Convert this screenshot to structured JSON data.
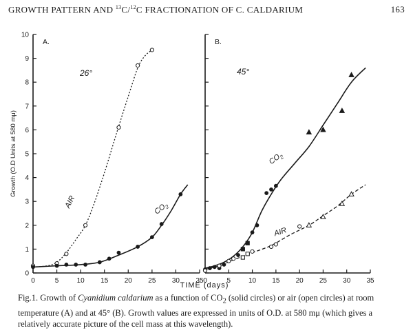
{
  "header": {
    "title_parts": [
      "GROWTH PATTERN AND ",
      "13",
      "C/",
      "12",
      "C FRACTIONATION OF C. CALDARIUM"
    ],
    "page_number": "163"
  },
  "caption": {
    "label": "Fig.1. Growth of ",
    "species": "Cyanidium caldarium",
    "part2": " as a function of CO",
    "sub2": "2",
    "part3": " (solid circles) or air (open circles) at room temperature (A) and at 45° (B). Growth values are expressed in units of O.D. at 580 mμ (which gives a relatively accurate picture of the cell mass at this wavelength)."
  },
  "chart_data": [
    {
      "type": "scatter",
      "panel": "A.",
      "temperature_label": "26°",
      "xlabel": "TIME (days)",
      "ylabel": "Growth (O.D Units at 580 mμ)",
      "xlim": [
        0,
        35
      ],
      "ylim": [
        0,
        10
      ],
      "x_ticks": [
        0,
        5,
        10,
        15,
        20,
        25,
        30,
        35
      ],
      "y_ticks": [
        0,
        1,
        2,
        3,
        4,
        5,
        6,
        7,
        8,
        9,
        10
      ],
      "series": [
        {
          "name": "AIR",
          "marker": "open-circle",
          "line": "dotted",
          "points": [
            [
              0,
              0.3
            ],
            [
              5,
              0.4
            ],
            [
              7,
              0.8
            ],
            [
              11,
              2.0
            ],
            [
              18,
              6.1
            ],
            [
              22,
              8.7
            ],
            [
              25,
              9.35
            ]
          ],
          "curve": [
            [
              0,
              0.25
            ],
            [
              3,
              0.3
            ],
            [
              5,
              0.45
            ],
            [
              7,
              0.85
            ],
            [
              9,
              1.4
            ],
            [
              11,
              2.0
            ],
            [
              13,
              3.0
            ],
            [
              15,
              4.2
            ],
            [
              17,
              5.5
            ],
            [
              18,
              6.15
            ],
            [
              20,
              7.4
            ],
            [
              22,
              8.6
            ],
            [
              23.5,
              9.1
            ],
            [
              25,
              9.35
            ]
          ]
        },
        {
          "name": "CO2",
          "label_base": "CO",
          "label_sub": "2",
          "marker": "filled-circle",
          "line": "solid",
          "points": [
            [
              0,
              0.25
            ],
            [
              5,
              0.3
            ],
            [
              7,
              0.35
            ],
            [
              9,
              0.35
            ],
            [
              11,
              0.35
            ],
            [
              14,
              0.45
            ],
            [
              16,
              0.6
            ],
            [
              18,
              0.85
            ],
            [
              22,
              1.1
            ],
            [
              25,
              1.5
            ],
            [
              27,
              2.05
            ],
            [
              31,
              3.3
            ]
          ],
          "curve": [
            [
              0,
              0.25
            ],
            [
              5,
              0.3
            ],
            [
              10,
              0.35
            ],
            [
              14,
              0.45
            ],
            [
              18,
              0.75
            ],
            [
              22,
              1.1
            ],
            [
              25,
              1.5
            ],
            [
              27,
              2.0
            ],
            [
              29,
              2.6
            ],
            [
              31,
              3.3
            ],
            [
              32.5,
              3.7
            ]
          ]
        }
      ]
    },
    {
      "type": "scatter",
      "panel": "B.",
      "temperature_label": "45°",
      "xlabel": "TIME (days)",
      "ylabel": "",
      "xlim": [
        0,
        35
      ],
      "ylim": [
        0,
        10
      ],
      "x_ticks": [
        0,
        5,
        10,
        15,
        20,
        25,
        30,
        35
      ],
      "series": [
        {
          "name": "CO2",
          "label_base": "CO",
          "label_sub": "2",
          "marker": "filled",
          "line": "solid",
          "points": [
            [
              0,
              0.15
            ],
            [
              1,
              0.2
            ],
            [
              2,
              0.25
            ],
            [
              3,
              0.2
            ],
            [
              4,
              0.35
            ],
            [
              6,
              0.6
            ],
            [
              7,
              0.75
            ],
            [
              8,
              1.0
            ],
            [
              9,
              1.25
            ],
            [
              10,
              1.7
            ],
            [
              11,
              2.0
            ],
            [
              13,
              3.35
            ],
            [
              14,
              3.5
            ],
            [
              15,
              3.65
            ],
            [
              22,
              5.9
            ],
            [
              25,
              6.0
            ],
            [
              29,
              6.8
            ],
            [
              31,
              8.3
            ]
          ],
          "curve": [
            [
              0,
              0.2
            ],
            [
              2,
              0.3
            ],
            [
              4,
              0.45
            ],
            [
              6,
              0.7
            ],
            [
              8,
              1.1
            ],
            [
              10,
              1.7
            ],
            [
              12,
              2.6
            ],
            [
              14,
              3.3
            ],
            [
              16,
              3.9
            ],
            [
              19,
              4.6
            ],
            [
              22,
              5.3
            ],
            [
              25,
              6.2
            ],
            [
              28,
              7.1
            ],
            [
              31,
              8.0
            ],
            [
              34,
              8.6
            ]
          ]
        },
        {
          "name": "AIR",
          "marker": "open",
          "line": "dashed",
          "points": [
            [
              0,
              0.1
            ],
            [
              3,
              0.3
            ],
            [
              5,
              0.5
            ],
            [
              6,
              0.6
            ],
            [
              8,
              0.65
            ],
            [
              9,
              0.8
            ],
            [
              10,
              0.9
            ],
            [
              14,
              1.1
            ],
            [
              15,
              1.2
            ],
            [
              20,
              1.95
            ],
            [
              22,
              2.0
            ],
            [
              25,
              2.35
            ],
            [
              29,
              2.9
            ],
            [
              31,
              3.3
            ]
          ],
          "curve": [
            [
              0,
              0.15
            ],
            [
              3,
              0.3
            ],
            [
              6,
              0.55
            ],
            [
              10,
              0.85
            ],
            [
              14,
              1.15
            ],
            [
              18,
              1.6
            ],
            [
              22,
              2.0
            ],
            [
              25,
              2.4
            ],
            [
              28,
              2.8
            ],
            [
              31,
              3.3
            ],
            [
              34,
              3.7
            ]
          ]
        }
      ]
    }
  ]
}
